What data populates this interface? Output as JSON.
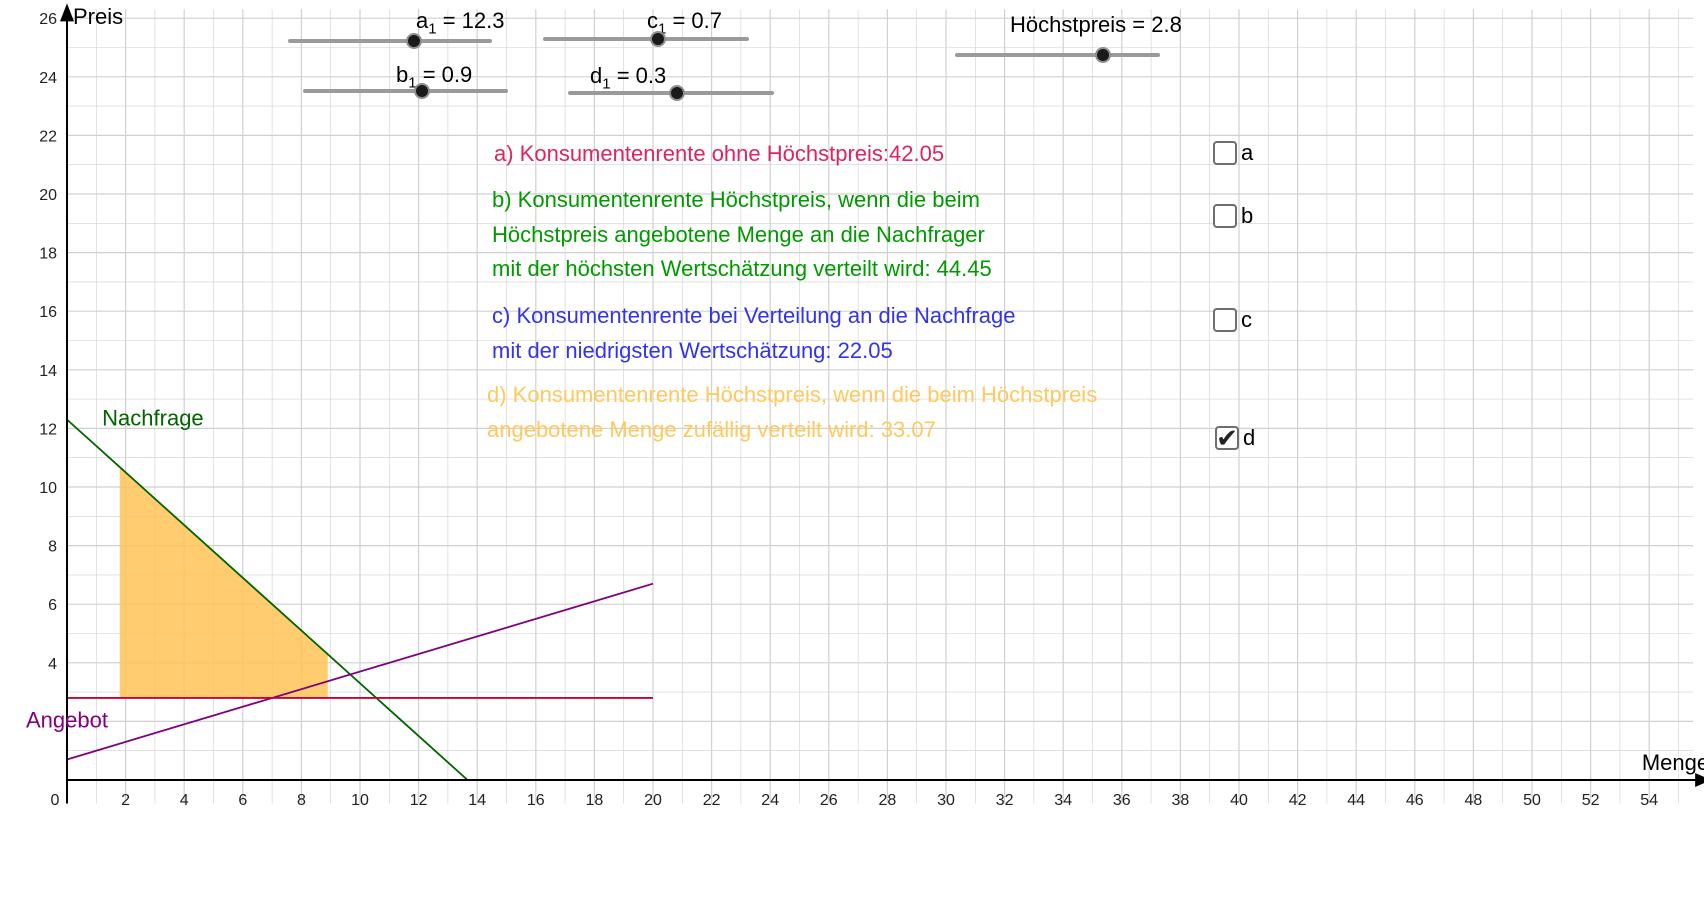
{
  "colors": {
    "demand": "#006400",
    "supply": "#800080",
    "price_cap": "#cc0033",
    "area_fill": "#ffc456",
    "grid": "#d0d0d0",
    "axis": "#000000",
    "text_a": "#e0245e",
    "text_b": "#009900",
    "text_c": "#3333ee",
    "text_d": "#ffc95c"
  },
  "sliders": [
    {
      "var": "a",
      "sub": "1",
      "value": "12.3",
      "level": 0.62
    },
    {
      "var": "b",
      "sub": "1",
      "value": "0.9",
      "level": 0.58
    },
    {
      "var": "c",
      "sub": "1",
      "value": "0.7",
      "level": 0.56
    },
    {
      "var": "d",
      "sub": "1",
      "value": "0.3",
      "level": 0.53
    },
    {
      "var": "Höchstpreis",
      "sub": "",
      "value": "2.8",
      "level": 0.72
    }
  ],
  "info": {
    "a_lines": [
      "a) Konsumentenrente ohne Höchstpreis:42.05"
    ],
    "b_lines": [
      "b) Konsumentenrente Höchstpreis, wenn die beim",
      "Höchstpreis angebotene Menge an die Nachfrager",
      "mit der höchsten Wertschätzung verteilt wird: 44.45"
    ],
    "c_lines": [
      "c) Konsumentenrente bei Verteilung an die Nachfrage",
      "mit der niedrigsten Wertschätzung: 22.05"
    ],
    "d_lines": [
      "d) Konsumentenrente Höchstpreis, wenn die beim Höchstpreis",
      "angebotene Menge zufällig verteilt wird: 33.07"
    ]
  },
  "checkboxes": [
    {
      "label": "a",
      "checked": false
    },
    {
      "label": "b",
      "checked": false
    },
    {
      "label": "c",
      "checked": false
    },
    {
      "label": "d",
      "checked": true
    }
  ],
  "chart_data": {
    "type": "line",
    "xlabel": "Menge",
    "ylabel": "Preis",
    "xlim": [
      0,
      55.5
    ],
    "ylim": [
      -0.8,
      26.3
    ],
    "x_ticks": [
      0,
      2,
      4,
      6,
      8,
      10,
      12,
      14,
      16,
      18,
      20,
      22,
      24,
      26,
      28,
      30,
      32,
      34,
      36,
      38,
      40,
      42,
      44,
      46,
      48,
      50,
      52,
      54
    ],
    "y_ticks": [
      4,
      6,
      8,
      10,
      12,
      14,
      16,
      18,
      20,
      22,
      24,
      26
    ],
    "grid": true,
    "series": [
      {
        "name": "Nachfrage",
        "points": [
          [
            0,
            12.3
          ],
          [
            13.67,
            0
          ]
        ]
      },
      {
        "name": "Angebot",
        "points": [
          [
            0,
            0.7
          ],
          [
            20,
            6.7
          ]
        ]
      },
      {
        "name": "",
        "points": [
          [
            0,
            2.8
          ],
          [
            20,
            2.8
          ]
        ]
      }
    ],
    "shaded_area": [
      [
        1.8,
        2.8
      ],
      [
        1.8,
        10.68
      ],
      [
        8.9,
        4.29
      ],
      [
        8.9,
        2.8
      ]
    ],
    "annotations": [
      {
        "text": "Nachfrage",
        "x": 1.2,
        "y": 12.1
      },
      {
        "text": "Angebot",
        "x": -1.4,
        "y": 1.8
      }
    ]
  }
}
